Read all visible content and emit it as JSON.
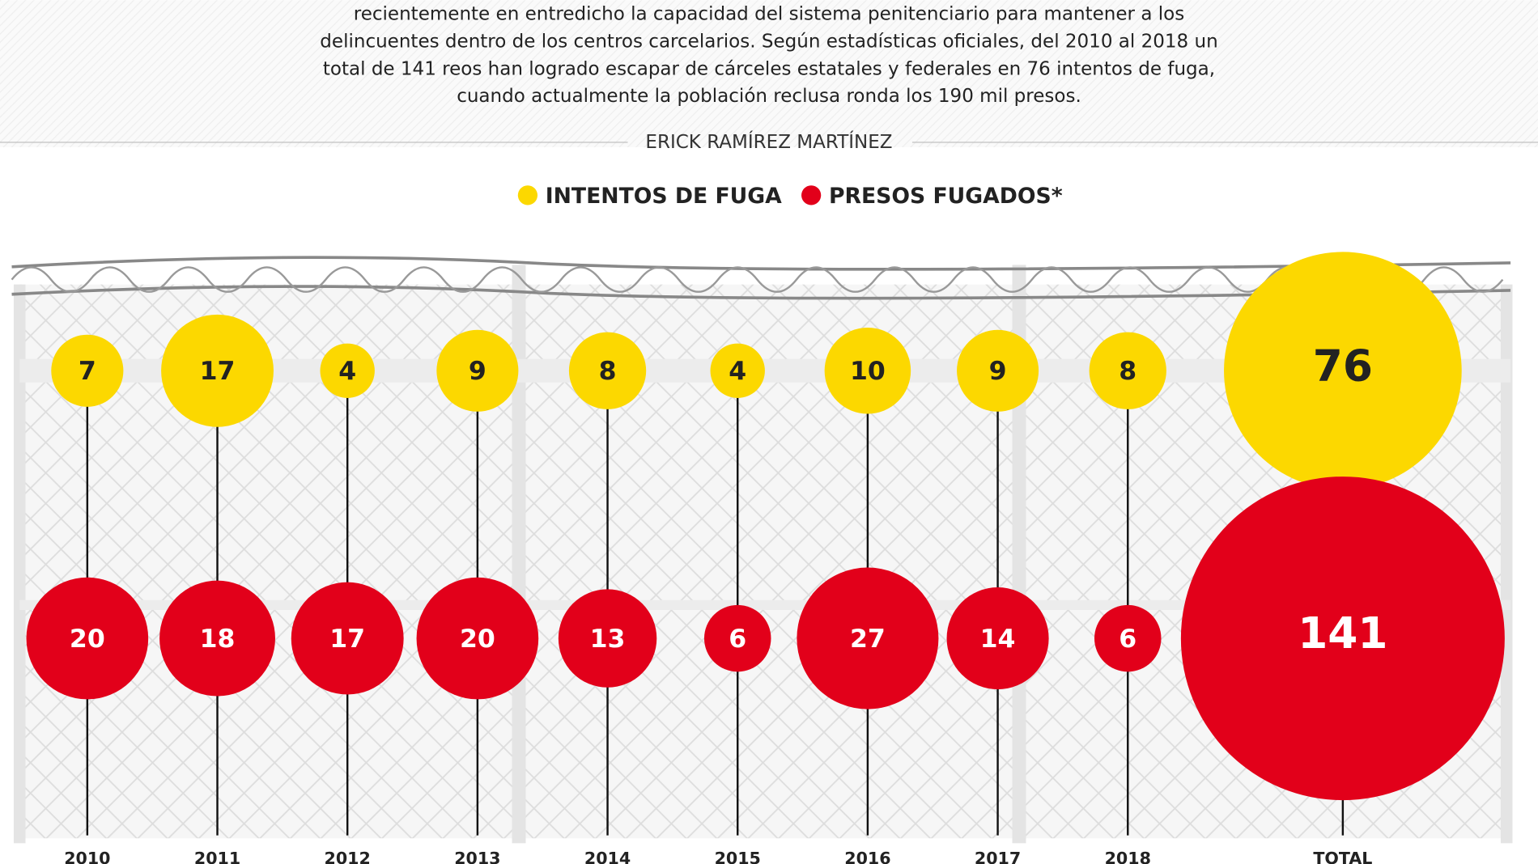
{
  "intro": [
    "recientemente en entredicho la capacidad del sistema penitenciario para mantener a los",
    "delincuentes dentro de los centros carcelarios. Según estadísticas oficiales, del 2010 al 2018 un",
    "total de 141 reos han logrado escapar de cárceles estatales y federales en 76 intentos de fuga,",
    "cuando actualmente la población reclusa ronda los 190 mil presos."
  ],
  "author": "ERICK RAMÍREZ MARTÍNEZ",
  "chart_data": {
    "type": "bubble",
    "categories": [
      "2010",
      "2011",
      "2012",
      "2013",
      "2014",
      "2015",
      "2016",
      "2017",
      "2018",
      "TOTAL"
    ],
    "series": [
      {
        "name": "INTENTOS DE FUGA",
        "color": "#fcd800",
        "values": [
          7,
          17,
          4,
          9,
          8,
          4,
          10,
          9,
          8,
          76
        ]
      },
      {
        "name": "PRESOS FUGADOS*",
        "color": "#e2001a",
        "values": [
          20,
          18,
          17,
          20,
          13,
          6,
          27,
          14,
          6,
          141
        ]
      }
    ]
  }
}
